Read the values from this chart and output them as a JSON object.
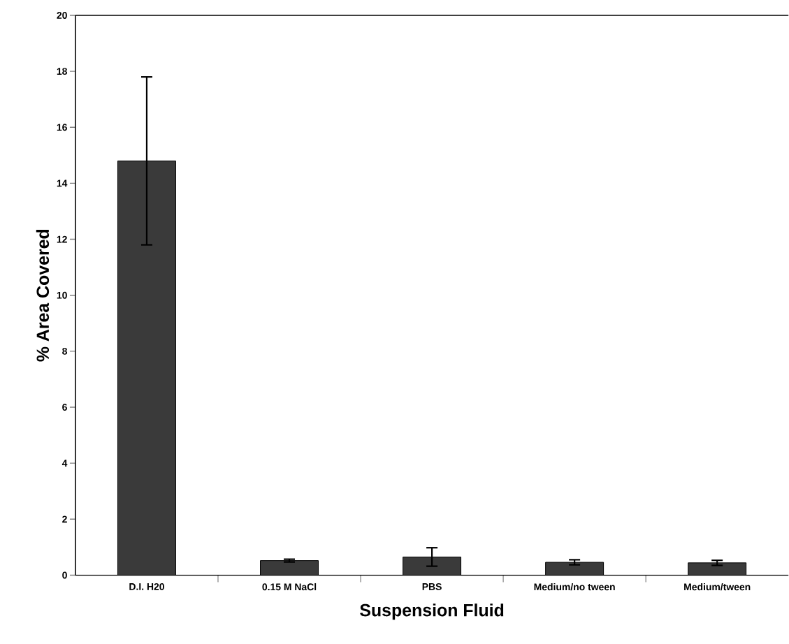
{
  "chart_data": {
    "type": "bar",
    "xlabel": "Suspension Fluid",
    "ylabel": "% Area Covered",
    "categories": [
      "D.I. H20",
      "0.15 M NaCl",
      "PBS",
      "Medium/no tween",
      "Medium/tween"
    ],
    "values": [
      14.8,
      0.52,
      0.65,
      0.46,
      0.44
    ],
    "errors": [
      3.0,
      0.05,
      0.33,
      0.09,
      0.09
    ],
    "color": "#3a3a3a",
    "ylim": [
      0,
      20
    ],
    "yticks": [
      0,
      2,
      4,
      6,
      8,
      10,
      12,
      14,
      16,
      18,
      20
    ],
    "grid": false
  }
}
